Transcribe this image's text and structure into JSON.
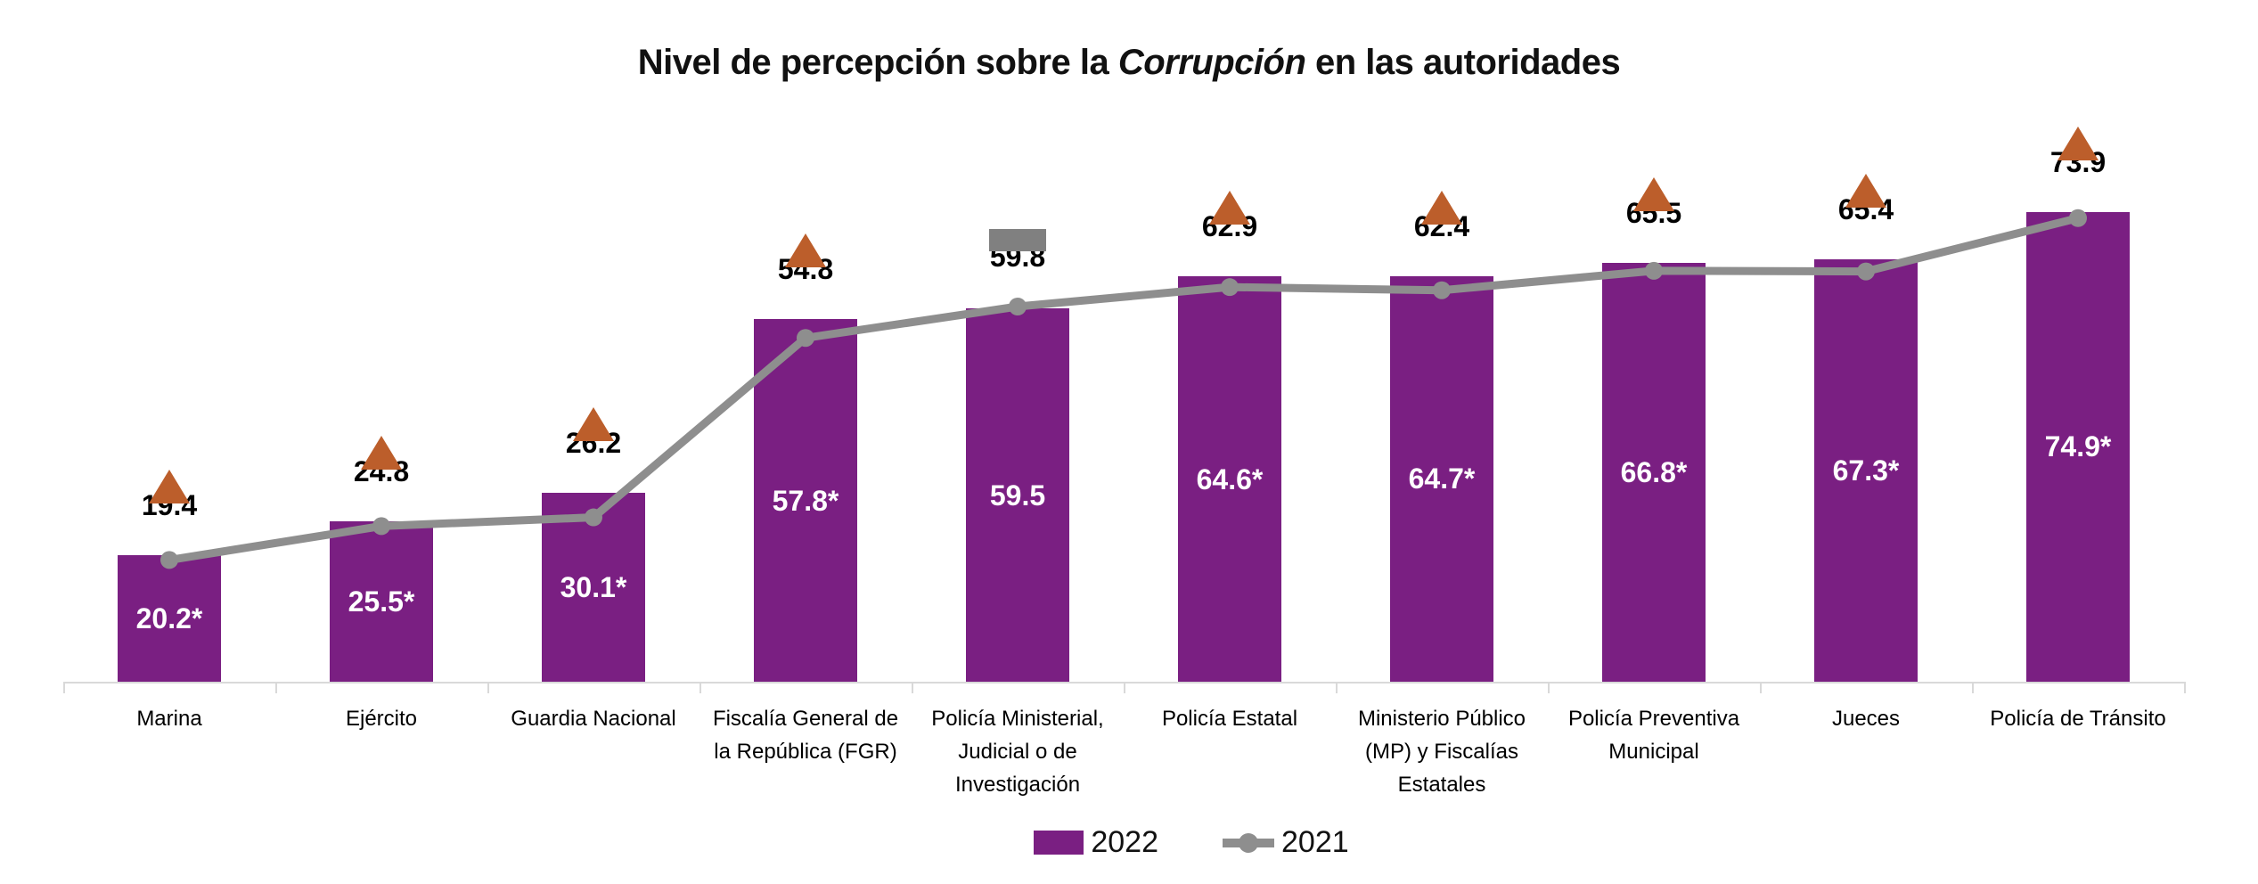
{
  "chart_data": {
    "type": "bar+line",
    "title": {
      "prefix": "Nivel de percepción sobre la ",
      "emphasis": "Corrupción",
      "suffix": " en las autoridades"
    },
    "categories": [
      "Marina",
      "Ejército",
      "Guardia Nacional",
      "Fiscalía General de\nla República (FGR)",
      "Policía Ministerial,\nJudicial o de\nInvestigación",
      "Policía Estatal",
      "Ministerio Público\n(MP) y Fiscalías\nEstatales",
      "Policía Preventiva\nMunicipal",
      "Jueces",
      "Policía de Tránsito"
    ],
    "series": [
      {
        "name": "2022",
        "type": "bar",
        "color": "#7a1f82",
        "values": [
          20.2,
          25.5,
          30.1,
          57.8,
          59.5,
          64.6,
          64.7,
          66.8,
          67.3,
          74.9
        ],
        "labels": [
          "20.2*",
          "25.5*",
          "30.1*",
          "57.8*",
          "59.5",
          "64.6*",
          "64.7*",
          "66.8*",
          "67.3*",
          "74.9*"
        ]
      },
      {
        "name": "2021",
        "type": "line",
        "color": "#8e8e8e",
        "values": [
          19.4,
          24.8,
          26.2,
          54.8,
          59.8,
          62.9,
          62.4,
          65.5,
          65.4,
          73.9
        ],
        "labels": [
          "19.4",
          "24.8",
          "26.2",
          "54.8",
          "59.8",
          "62.9",
          "62.4",
          "65.5",
          "65.4",
          "73.9"
        ]
      }
    ],
    "significance_markers": [
      "up",
      "up",
      "up",
      "up",
      "none",
      "up",
      "up",
      "up",
      "up",
      "up"
    ],
    "marker_colors": {
      "up": "#bc5e2b",
      "none": "#808080"
    },
    "axis_color": "#d9d9d9",
    "ylim": [
      0,
      80
    ],
    "grid": "off",
    "legend_position": "bottom"
  }
}
